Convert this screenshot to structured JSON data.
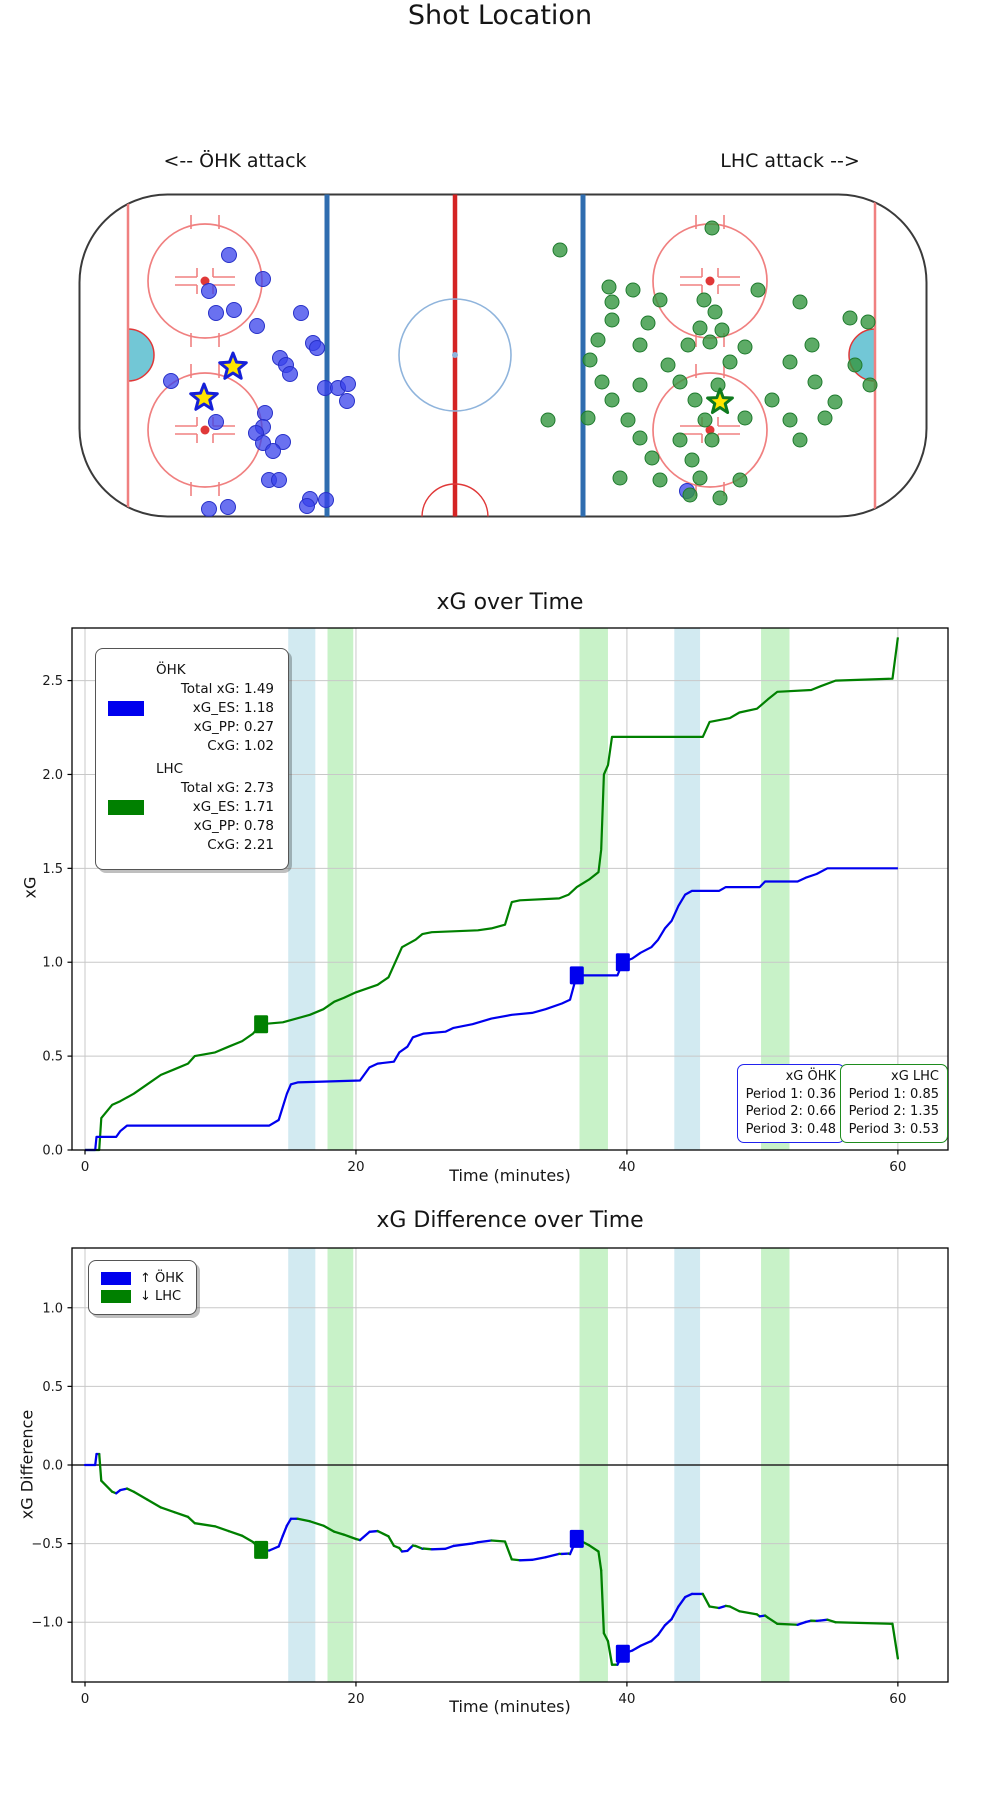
{
  "shot_map": {
    "title": "Shot Location",
    "left_label": "<-- ÖHK attack",
    "right_label": "LHC attack -->",
    "colors": {
      "home_dot": "rgba(56,66,235,0.75)",
      "home_edge": "#2730c8",
      "away_dot": "rgba(52,150,64,0.8)",
      "away_edge": "#1f7a2e",
      "goal_star_fill": "#ffe500",
      "rink_line_pink": "#f08080",
      "rink_red": "#e03838",
      "blue_line": "#2f6db0",
      "center_line": "#d42424",
      "center_circle": "#8fb4dc",
      "crease_fill": "#72c7d6",
      "board": "#3a3a3a"
    },
    "home_team": "ÖHK",
    "away_team": "LHC",
    "home_shots": [
      [
        151,
        62
      ],
      [
        185,
        86
      ],
      [
        131,
        98
      ],
      [
        138,
        120
      ],
      [
        156,
        117
      ],
      [
        179,
        133
      ],
      [
        223,
        120
      ],
      [
        235,
        150
      ],
      [
        239,
        155
      ],
      [
        202,
        165
      ],
      [
        208,
        172
      ],
      [
        212,
        181
      ],
      [
        93,
        188
      ],
      [
        247,
        195
      ],
      [
        260,
        195
      ],
      [
        270,
        191
      ],
      [
        269,
        208
      ],
      [
        138,
        229
      ],
      [
        187,
        220
      ],
      [
        185,
        234
      ],
      [
        178,
        240
      ],
      [
        185,
        250
      ],
      [
        205,
        249
      ],
      [
        195,
        258
      ],
      [
        191,
        287
      ],
      [
        201,
        287
      ],
      [
        232,
        306
      ],
      [
        248,
        307
      ],
      [
        229,
        313
      ],
      [
        131,
        316
      ],
      [
        150,
        314
      ],
      [
        609,
        298
      ]
    ],
    "away_shots": [
      [
        634,
        35
      ],
      [
        482,
        57
      ],
      [
        531,
        94
      ],
      [
        555,
        97
      ],
      [
        534,
        109
      ],
      [
        582,
        107
      ],
      [
        626,
        107
      ],
      [
        680,
        97
      ],
      [
        637,
        119
      ],
      [
        722,
        109
      ],
      [
        534,
        127
      ],
      [
        570,
        130
      ],
      [
        622,
        135
      ],
      [
        644,
        137
      ],
      [
        772,
        125
      ],
      [
        790,
        129
      ],
      [
        520,
        147
      ],
      [
        562,
        152
      ],
      [
        610,
        152
      ],
      [
        632,
        149
      ],
      [
        667,
        154
      ],
      [
        734,
        152
      ],
      [
        512,
        167
      ],
      [
        590,
        172
      ],
      [
        652,
        169
      ],
      [
        712,
        169
      ],
      [
        777,
        172
      ],
      [
        524,
        189
      ],
      [
        562,
        192
      ],
      [
        602,
        189
      ],
      [
        640,
        192
      ],
      [
        737,
        189
      ],
      [
        792,
        192
      ],
      [
        534,
        207
      ],
      [
        617,
        207
      ],
      [
        694,
        207
      ],
      [
        757,
        209
      ],
      [
        510,
        225
      ],
      [
        550,
        227
      ],
      [
        627,
        227
      ],
      [
        667,
        225
      ],
      [
        712,
        227
      ],
      [
        747,
        225
      ],
      [
        470,
        227
      ],
      [
        562,
        245
      ],
      [
        602,
        247
      ],
      [
        634,
        247
      ],
      [
        722,
        247
      ],
      [
        574,
        265
      ],
      [
        614,
        267
      ],
      [
        542,
        285
      ],
      [
        582,
        287
      ],
      [
        622,
        285
      ],
      [
        662,
        287
      ],
      [
        612,
        302
      ],
      [
        642,
        305
      ]
    ],
    "home_goals": [
      [
        155,
        174
      ],
      [
        126,
        205
      ]
    ],
    "away_goals": [
      [
        642,
        209
      ]
    ]
  },
  "chart_data": [
    {
      "type": "line",
      "title": "xG over Time",
      "xlabel": "Time (minutes)",
      "ylabel": "xG",
      "xlim": [
        -0.96,
        63.7
      ],
      "ylim": [
        0,
        2.78
      ],
      "grid": true,
      "xticks": [
        {
          "v": 0,
          "label": "0"
        },
        {
          "v": 20,
          "label": "20"
        },
        {
          "v": 40,
          "label": "40"
        },
        {
          "v": 60,
          "label": "60"
        }
      ],
      "yticks": [
        {
          "v": 0,
          "label": "0.0"
        },
        {
          "v": 0.5,
          "label": "0.5"
        },
        {
          "v": 1,
          "label": "1.0"
        },
        {
          "v": 1.5,
          "label": "1.5"
        },
        {
          "v": 2,
          "label": "2.0"
        },
        {
          "v": 2.5,
          "label": "2.5"
        }
      ],
      "bands": [
        {
          "x0": 15.0,
          "x1": 17.0,
          "color": "rgba(173,216,230,0.55)"
        },
        {
          "x0": 17.9,
          "x1": 19.8,
          "color": "rgba(146,230,146,0.5)"
        },
        {
          "x0": 36.5,
          "x1": 38.6,
          "color": "rgba(146,230,146,0.5)"
        },
        {
          "x0": 43.5,
          "x1": 45.4,
          "color": "rgba(173,216,230,0.55)"
        },
        {
          "x0": 49.9,
          "x1": 52.0,
          "color": "rgba(146,230,146,0.5)"
        }
      ],
      "series": [
        {
          "name": "ÖHK",
          "color": "#0000ee",
          "points": [
            [
              0,
              0
            ],
            [
              0.75,
              0
            ],
            [
              0.85,
              0.07
            ],
            [
              2.3,
              0.07
            ],
            [
              2.6,
              0.1
            ],
            [
              3.1,
              0.13
            ],
            [
              13.6,
              0.13
            ],
            [
              14.3,
              0.16
            ],
            [
              14.9,
              0.3
            ],
            [
              15.2,
              0.35
            ],
            [
              15.7,
              0.36
            ],
            [
              20.3,
              0.37
            ],
            [
              21,
              0.44
            ],
            [
              21.6,
              0.46
            ],
            [
              22.8,
              0.47
            ],
            [
              23.2,
              0.52
            ],
            [
              23.8,
              0.55
            ],
            [
              24.2,
              0.6
            ],
            [
              25,
              0.62
            ],
            [
              26.6,
              0.63
            ],
            [
              27.2,
              0.65
            ],
            [
              28.6,
              0.67
            ],
            [
              30,
              0.7
            ],
            [
              31.5,
              0.72
            ],
            [
              33,
              0.73
            ],
            [
              34,
              0.75
            ],
            [
              35.2,
              0.78
            ],
            [
              35.8,
              0.8
            ],
            [
              36.1,
              0.88
            ],
            [
              36.3,
              0.93
            ],
            [
              39.3,
              0.93
            ],
            [
              39.7,
              1
            ],
            [
              40.4,
              1.02
            ],
            [
              41,
              1.05
            ],
            [
              41.8,
              1.08
            ],
            [
              42.3,
              1.12
            ],
            [
              42.8,
              1.18
            ],
            [
              43.3,
              1.22
            ],
            [
              43.8,
              1.3
            ],
            [
              44.3,
              1.36
            ],
            [
              44.8,
              1.38
            ],
            [
              46.8,
              1.38
            ],
            [
              47.3,
              1.4
            ],
            [
              49.8,
              1.4
            ],
            [
              50.2,
              1.43
            ],
            [
              52.6,
              1.43
            ],
            [
              53.2,
              1.45
            ],
            [
              54,
              1.47
            ],
            [
              54.8,
              1.5
            ],
            [
              60,
              1.5
            ]
          ],
          "goal_markers": [
            [
              36.3,
              0.93
            ],
            [
              39.7,
              1.0
            ]
          ]
        },
        {
          "name": "LHC",
          "color": "#008000",
          "points": [
            [
              0,
              0
            ],
            [
              1.05,
              0
            ],
            [
              1.2,
              0.17
            ],
            [
              2,
              0.24
            ],
            [
              2.6,
              0.26
            ],
            [
              3.6,
              0.3
            ],
            [
              4.6,
              0.35
            ],
            [
              5.6,
              0.4
            ],
            [
              6.6,
              0.43
            ],
            [
              7.6,
              0.46
            ],
            [
              8.1,
              0.5
            ],
            [
              9.6,
              0.52
            ],
            [
              10.6,
              0.55
            ],
            [
              11.6,
              0.58
            ],
            [
              12.4,
              0.62
            ],
            [
              13,
              0.67
            ],
            [
              14.6,
              0.68
            ],
            [
              15.6,
              0.7
            ],
            [
              16.6,
              0.72
            ],
            [
              17.6,
              0.75
            ],
            [
              18.4,
              0.79
            ],
            [
              19.1,
              0.81
            ],
            [
              20,
              0.84
            ],
            [
              21.6,
              0.88
            ],
            [
              22.4,
              0.92
            ],
            [
              23.4,
              1.08
            ],
            [
              24.4,
              1.12
            ],
            [
              24.9,
              1.15
            ],
            [
              25.6,
              1.16
            ],
            [
              29,
              1.17
            ],
            [
              30,
              1.18
            ],
            [
              31,
              1.2
            ],
            [
              31.5,
              1.32
            ],
            [
              32.1,
              1.33
            ],
            [
              35,
              1.34
            ],
            [
              35.7,
              1.36
            ],
            [
              36.3,
              1.4
            ],
            [
              37.2,
              1.44
            ],
            [
              37.9,
              1.48
            ],
            [
              38.1,
              1.6
            ],
            [
              38.3,
              2
            ],
            [
              38.6,
              2.05
            ],
            [
              38.9,
              2.2
            ],
            [
              45.6,
              2.2
            ],
            [
              46.1,
              2.28
            ],
            [
              47.6,
              2.3
            ],
            [
              48.3,
              2.33
            ],
            [
              49.6,
              2.35
            ],
            [
              50.4,
              2.4
            ],
            [
              51.1,
              2.44
            ],
            [
              53.6,
              2.45
            ],
            [
              54.3,
              2.47
            ],
            [
              55.4,
              2.5
            ],
            [
              59.6,
              2.51
            ],
            [
              60,
              2.73
            ]
          ],
          "goal_markers": [
            [
              13,
              0.67
            ]
          ]
        }
      ],
      "legend": {
        "entries": [
          {
            "swatch": "#0000ee",
            "lines": [
              "ÖHK",
              "Total xG: 1.49",
              "xG_ES: 1.18",
              "xG_PP: 0.27",
              "CxG: 1.02"
            ]
          },
          {
            "swatch": "#008000",
            "lines": [
              "LHC",
              "Total xG: 2.73",
              "xG_ES: 1.71",
              "xG_PP: 0.78",
              "CxG: 2.21"
            ]
          }
        ]
      },
      "period_boxes": [
        {
          "title": "xG ÖHK",
          "border": "#2222ee",
          "rows": [
            "Period 1: 0.36",
            "Period 2: 0.66",
            "Period 3: 0.48"
          ]
        },
        {
          "title": "xG LHC",
          "border": "#1e8c1e",
          "rows": [
            "Period 1: 0.85",
            "Period 2: 1.35",
            "Period 3: 0.53"
          ]
        }
      ]
    },
    {
      "type": "line",
      "title": "xG Difference over Time",
      "xlabel": "Time (minutes)",
      "ylabel": "xG Difference",
      "xlim": [
        -0.96,
        63.7
      ],
      "ylim": [
        -1.38,
        1.38
      ],
      "grid": true,
      "zero_line": true,
      "xticks": [
        {
          "v": 0,
          "label": "0"
        },
        {
          "v": 20,
          "label": "20"
        },
        {
          "v": 40,
          "label": "40"
        },
        {
          "v": 60,
          "label": "60"
        }
      ],
      "yticks": [
        {
          "v": -1,
          "label": "−1.0"
        },
        {
          "v": -0.5,
          "label": "−0.5"
        },
        {
          "v": 0,
          "label": "0.0"
        },
        {
          "v": 0.5,
          "label": "0.5"
        },
        {
          "v": 1,
          "label": "1.0"
        }
      ],
      "bands": [
        {
          "x0": 15.0,
          "x1": 17.0,
          "color": "rgba(173,216,230,0.55)"
        },
        {
          "x0": 17.9,
          "x1": 19.8,
          "color": "rgba(146,230,146,0.5)"
        },
        {
          "x0": 36.5,
          "x1": 38.6,
          "color": "rgba(146,230,146,0.5)"
        },
        {
          "x0": 43.5,
          "x1": 45.4,
          "color": "rgba(173,216,230,0.55)"
        },
        {
          "x0": 49.9,
          "x1": 52.0,
          "color": "rgba(146,230,146,0.5)"
        }
      ],
      "diff_colors": {
        "up": "#0000ee",
        "down": "#008000"
      },
      "legend": [
        {
          "label": "↑ ÖHK",
          "color": "#0000ee"
        },
        {
          "label": "↓ LHC",
          "color": "#008000"
        }
      ],
      "goal_markers": [
        {
          "t": 13,
          "team": "LHC",
          "color": "#008000"
        },
        {
          "t": 36.3,
          "team": "ÖHK",
          "color": "#0000ee"
        },
        {
          "t": 39.7,
          "team": "ÖHK",
          "color": "#0000ee"
        }
      ]
    }
  ]
}
